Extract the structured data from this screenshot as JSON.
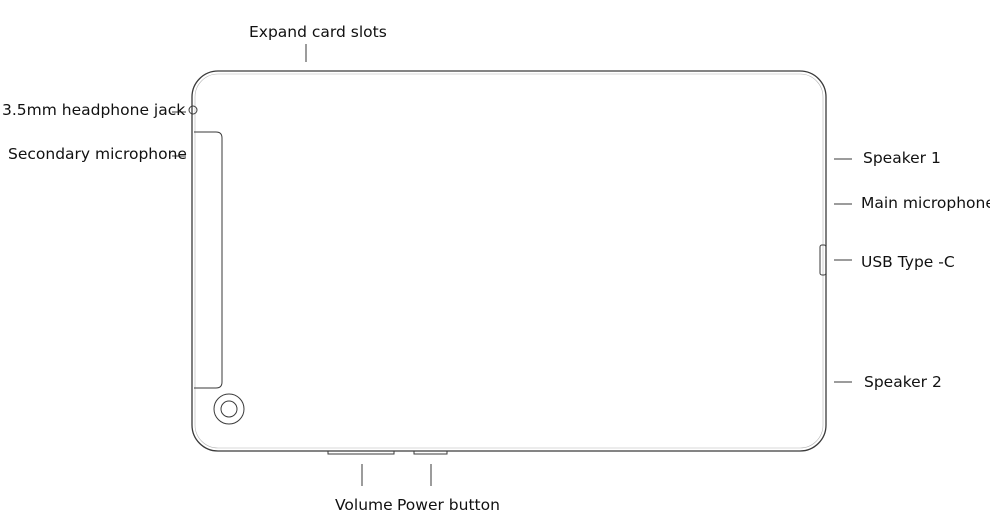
{
  "labels": {
    "expand_card_slots": "Expand card slots",
    "headphone_jack": "3.5mm headphone jack",
    "secondary_microphone": "Secondary microphone",
    "speaker_1": "Speaker 1",
    "main_microphone": "Main microphone",
    "usb_type_c": "USB Type -C",
    "speaker_2": "Speaker 2",
    "volume": "Volume",
    "power_button": "Power button"
  }
}
